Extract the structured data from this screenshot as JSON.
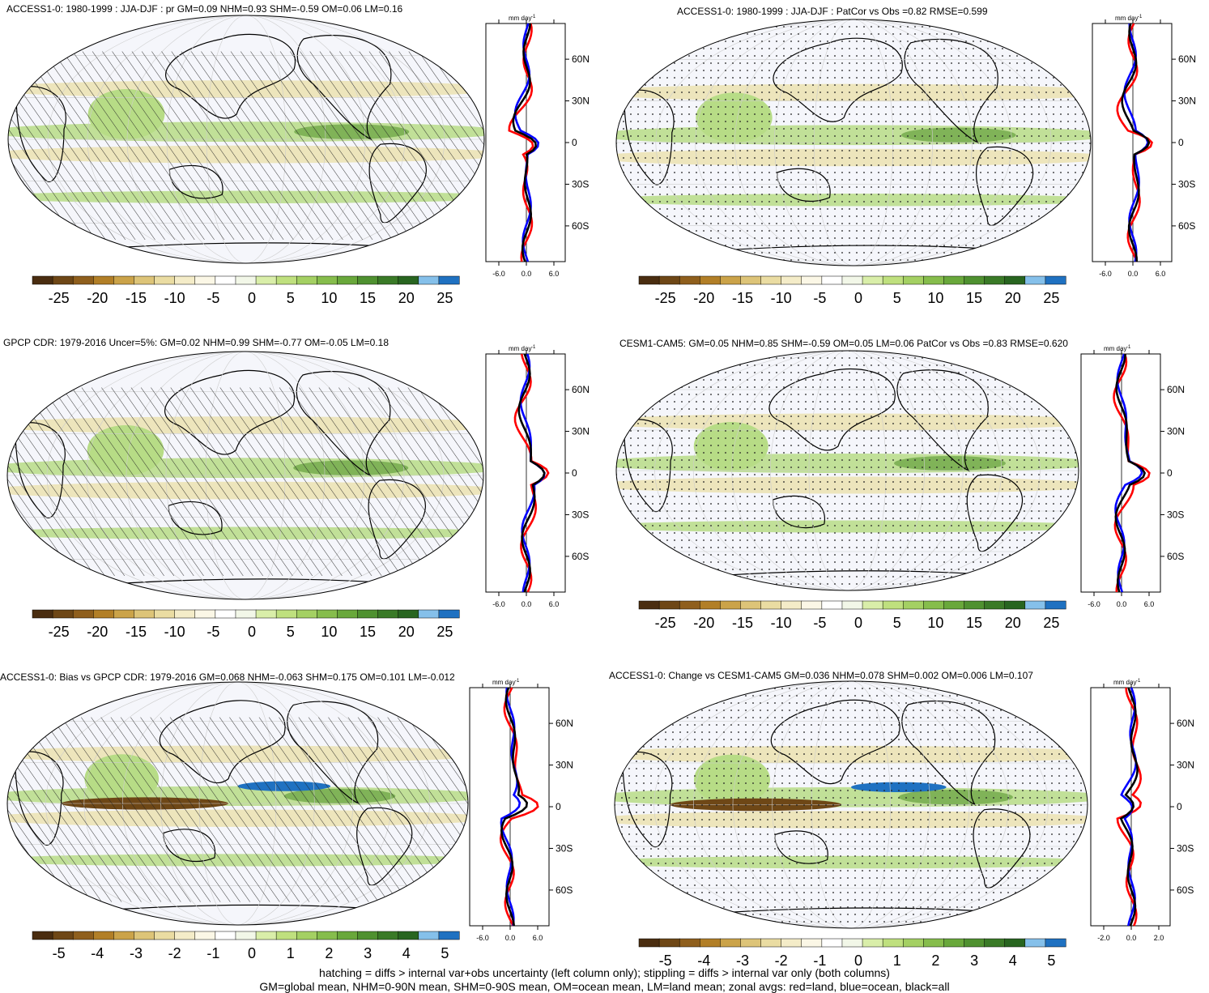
{
  "panels": [
    {
      "title": "ACCESS1-0: 1980-1999 : JJA-DJF : pr GM=0.09 NHM=0.93 SHM=-0.59 OM=0.06 LM=0.16",
      "kind": "mean",
      "pattern": "hatch"
    },
    {
      "title": "ACCESS1-0: 1980-1999 : JJA-DJF : PatCor vs Obs =0.82 RMSE=0.599",
      "kind": "mean",
      "pattern": "stipple"
    },
    {
      "title": "GPCP CDR: 1979-2016 Uncer=5%: GM=0.02 NHM=0.99 SHM=-0.77 OM=-0.05 LM=0.18",
      "kind": "mean",
      "pattern": "hatch"
    },
    {
      "title": "CESM1-CAM5: GM=0.05 NHM=0.85 SHM=-0.59 OM=0.05 LM=0.06 PatCor vs Obs =0.83 RMSE=0.620",
      "kind": "mean",
      "pattern": "stipple"
    },
    {
      "title": "ACCESS1-0: Bias vs GPCP CDR: 1979-2016 GM=0.068 NHM=-0.063 SHM=0.175 OM=0.101 LM=-0.012",
      "kind": "diff",
      "pattern": "hatch"
    },
    {
      "title": "ACCESS1-0: Change vs CESM1-CAM5 GM=0.036 NHM=0.078 SHM=0.002 OM=0.006 LM=0.107",
      "kind": "diff",
      "pattern": "stipple"
    }
  ],
  "unit_label": "mm day",
  "unit_exponent": "-1",
  "lat_labels": [
    "60N",
    "30N",
    "0",
    "30S",
    "60S"
  ],
  "zonal_ticks_a": [
    "-6.0",
    "0.0",
    "6.0"
  ],
  "zonal_ticks_b": [
    "-2.0",
    "0.0",
    "2.0"
  ],
  "colorbar_labels_a": [
    "-25",
    "-20",
    "-15",
    "-10",
    "-5",
    "0",
    "5",
    "10",
    "15",
    "20",
    "25"
  ],
  "colorbar_labels_b": [
    "-5",
    "-4",
    "-3",
    "-2",
    "-1",
    "0",
    "1",
    "2",
    "3",
    "4",
    "5"
  ],
  "colorbar_colors": [
    "#4a2d10",
    "#6e4716",
    "#8f5f1d",
    "#b27f27",
    "#cba349",
    "#ddc478",
    "#eadca2",
    "#f4ecc8",
    "#fbf7e6",
    "#ffffff",
    "#f2f7e8",
    "#d9eea9",
    "#bfe07e",
    "#a4d063",
    "#86bd4c",
    "#69a83b",
    "#4f9130",
    "#3a7a27",
    "#286520",
    "#85c0ea",
    "#1f71c1"
  ],
  "line_colors": {
    "land": "#ff0000",
    "ocean": "#0000ff",
    "all": "#000000"
  },
  "map_colors": {
    "background": "#f5f6fb",
    "dry": "#ebe2b0",
    "wet": "#b7dc86",
    "very_wet": "#6fa848",
    "coast": "#000000"
  },
  "footer": {
    "line1": "hatching = diffs > internal var+obs uncertainty (left column only); stippling = diffs > internal var only (both columns)",
    "line2": "GM=global mean, NHM=0-90N mean, SHM=0-90S mean, OM=ocean mean, LM=land mean; zonal avgs: red=land, blue=ocean, black=all"
  }
}
